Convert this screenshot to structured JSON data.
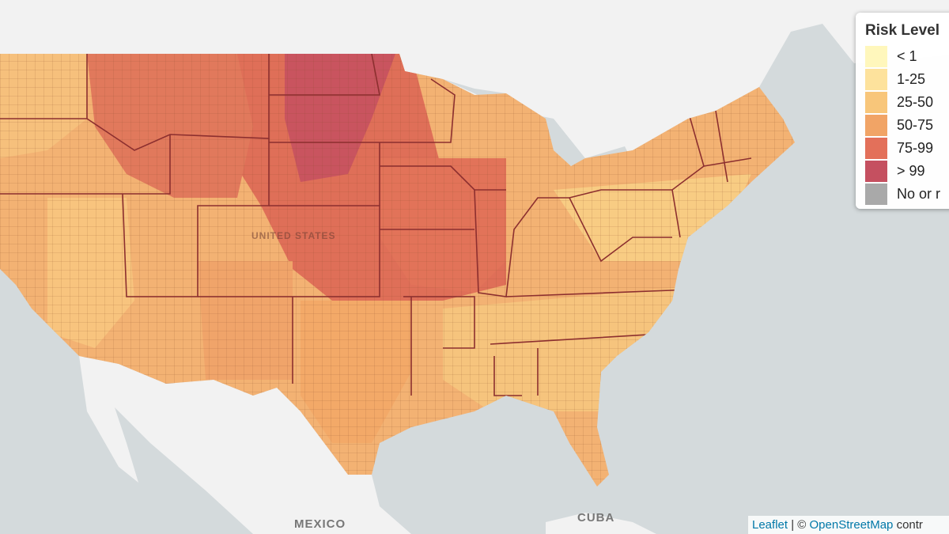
{
  "legend": {
    "title": "Risk Level",
    "items": [
      {
        "label": "< 1",
        "color": "#fff7bc"
      },
      {
        "label": "1-25",
        "color": "#fde29c"
      },
      {
        "label": "25-50",
        "color": "#f8c67a"
      },
      {
        "label": "50-75",
        "color": "#f1a466"
      },
      {
        "label": "75-99",
        "color": "#e3705a"
      },
      {
        "label": "> 99",
        "color": "#c55060"
      },
      {
        "label": "No or r",
        "color": "#a9a9a9"
      }
    ]
  },
  "map_labels": {
    "country_south": "MEXICO",
    "country_cuba": "CUBA",
    "country_center": "UNITED STATES"
  },
  "attribution": {
    "leaflet": "Leaflet",
    "separator": " | © ",
    "osm": "OpenStreetMap",
    "suffix": " contr"
  },
  "colors": {
    "water": "#d4dadc",
    "land": "#f2f2f2",
    "state_border": "#8c2f2f",
    "county_border": "#a0522d"
  }
}
